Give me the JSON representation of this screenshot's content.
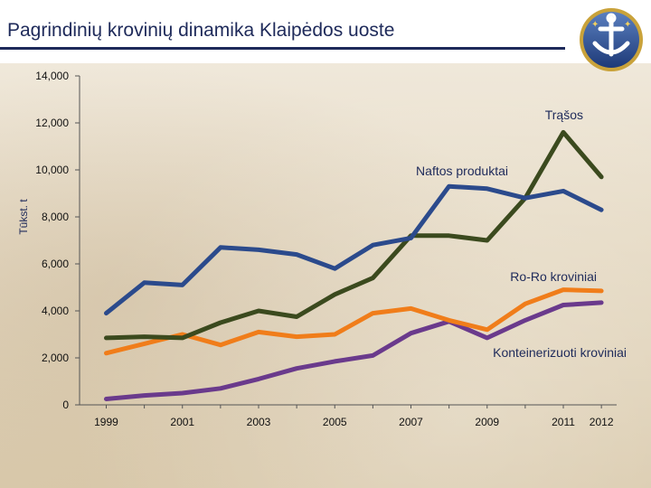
{
  "header": {
    "title": "Pagrindinių krovinių dinamika Klaipėdos uoste"
  },
  "icons": {
    "logo": "port-anchor-emblem-icon"
  },
  "colors": {
    "title": "#1e2a5a",
    "naftos": "#2b4a8c",
    "trasos": "#3b4a1e",
    "roro": "#f07d1a",
    "konteineriai": "#6a3a8c"
  },
  "chart_data": {
    "type": "line",
    "x": [
      1999,
      2000,
      2001,
      2002,
      2003,
      2004,
      2005,
      2006,
      2007,
      2008,
      2009,
      2010,
      2011,
      2012
    ],
    "x_tick_labels": [
      "1999",
      "2001",
      "2003",
      "2005",
      "2007",
      "2009",
      "2011",
      "2012"
    ],
    "x_tick_values": [
      1999,
      2001,
      2003,
      2005,
      2007,
      2009,
      2011,
      2012
    ],
    "ylabel": "Tūkst. t",
    "ylim": [
      0,
      14000
    ],
    "y_ticks": [
      0,
      2000,
      4000,
      6000,
      8000,
      10000,
      12000,
      14000
    ],
    "y_tick_labels": [
      "0",
      "2,000",
      "4,000",
      "6,000",
      "8,000",
      "10,000",
      "12,000",
      "14,000"
    ],
    "grid": false,
    "series": [
      {
        "name": "Naftos produktai",
        "color": "#2b4a8c",
        "values": [
          3900,
          5200,
          5100,
          6700,
          6600,
          6400,
          5800,
          6800,
          7100,
          9300,
          9200,
          8800,
          9100,
          8300
        ]
      },
      {
        "name": "Trąšos",
        "color": "#3b4a1e",
        "values": [
          2850,
          2900,
          2850,
          3500,
          4000,
          3750,
          4700,
          5400,
          7200,
          7200,
          7000,
          8800,
          11600,
          9700
        ]
      },
      {
        "name": "Ro-Ro kroviniai",
        "color": "#f07d1a",
        "values": [
          2200,
          2600,
          3000,
          2550,
          3100,
          2900,
          3000,
          3900,
          4100,
          3600,
          3200,
          4300,
          4900,
          4850
        ]
      },
      {
        "name": "Konteinerizuoti kroviniai",
        "color": "#6a3a8c",
        "values": [
          250,
          400,
          500,
          700,
          1100,
          1550,
          1850,
          2100,
          3050,
          3550,
          2850,
          3600,
          4250,
          4350
        ]
      }
    ]
  }
}
